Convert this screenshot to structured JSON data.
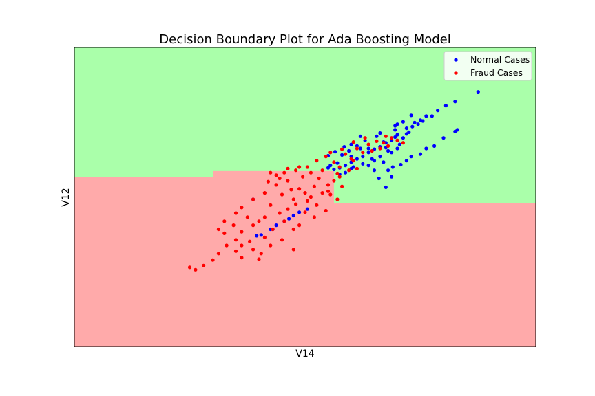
{
  "chart_data": {
    "type": "scatter",
    "title": "Decision Boundary Plot for Ada Boosting Model",
    "xlabel": "V14",
    "ylabel": "V12",
    "xlim": [
      -25,
      15
    ],
    "ylim": [
      -25,
      12
    ],
    "grid": false,
    "ticks_visible": false,
    "legend_position": "top-right",
    "background_regions": [
      {
        "label": "Normal region",
        "color": "#aaffaa"
      },
      {
        "label": "Fraud region",
        "color": "#ffaaaa"
      }
    ],
    "decision_boundary": [
      {
        "x": -25,
        "y": -4.0
      },
      {
        "x": -13,
        "y": -4.0
      },
      {
        "x": -13,
        "y": -3.3
      },
      {
        "x": -2.5,
        "y": -3.3
      },
      {
        "x": -2.5,
        "y": -7.3
      },
      {
        "x": 15,
        "y": -7.3
      }
    ],
    "series": [
      {
        "name": "Normal Cases",
        "color": "#0000ff",
        "points": [
          [
            5.0,
            3.0
          ],
          [
            4.5,
            2.7
          ],
          [
            4.8,
            2.5
          ],
          [
            5.5,
            3.5
          ],
          [
            3.8,
            2.0
          ],
          [
            4.0,
            1.5
          ],
          [
            3.0,
            1.2
          ],
          [
            3.5,
            0.8
          ],
          [
            2.5,
            0.5
          ],
          [
            2.0,
            0.2
          ],
          [
            1.5,
            -0.3
          ],
          [
            1.0,
            -0.6
          ],
          [
            0.5,
            -1.0
          ],
          [
            0.0,
            -1.5
          ],
          [
            -0.5,
            -1.8
          ],
          [
            -1.0,
            -2.2
          ],
          [
            -1.5,
            -2.6
          ],
          [
            -2.0,
            -2.9
          ],
          [
            -2.5,
            -3.1
          ],
          [
            -1.0,
            -1.5
          ],
          [
            0.5,
            -0.5
          ],
          [
            1.8,
            0.3
          ],
          [
            2.8,
            0.9
          ],
          [
            3.8,
            1.3
          ],
          [
            2.2,
            -0.8
          ],
          [
            1.5,
            -1.5
          ],
          [
            2.5,
            -1.0
          ],
          [
            3.0,
            -0.5
          ],
          [
            1.0,
            -2.0
          ],
          [
            0.0,
            -2.4
          ],
          [
            -1.5,
            -3.5
          ],
          [
            -2.0,
            -3.7
          ],
          [
            -0.8,
            -2.8
          ],
          [
            0.8,
            -1.8
          ],
          [
            3.5,
            2.8
          ],
          [
            2.8,
            2.3
          ],
          [
            1.5,
            1.4
          ],
          [
            0.2,
            0.5
          ],
          [
            -0.5,
            -0.2
          ],
          [
            -1.2,
            -0.8
          ],
          [
            -1.8,
            -1.3
          ],
          [
            4.3,
            2.2
          ],
          [
            5.2,
            2.9
          ],
          [
            2.8,
            1.8
          ],
          [
            1.2,
            1.0
          ],
          [
            -0.2,
            -0.5
          ],
          [
            3.2,
            0.0
          ],
          [
            2.0,
            -0.4
          ],
          [
            -2.2,
            -2.3
          ],
          [
            -2.8,
            -2.6
          ],
          [
            -3.0,
            -2.9
          ],
          [
            -1.0,
            -3.0
          ],
          [
            0.5,
            -2.6
          ],
          [
            1.8,
            -2.2
          ],
          [
            2.6,
            -2.8
          ],
          [
            4.2,
            -1.5
          ],
          [
            5.5,
            -0.5
          ],
          [
            7.0,
            0.8
          ],
          [
            8.0,
            1.6
          ],
          [
            8.2,
            1.8
          ],
          [
            5.0,
            -1.2
          ],
          [
            6.2,
            -0.2
          ],
          [
            3.3,
            -2.5
          ],
          [
            2.2,
            -3.2
          ],
          [
            1.4,
            -4.2
          ],
          [
            2.0,
            -5.3
          ],
          [
            -9.5,
            -6.8
          ],
          [
            -8.0,
            -10.5
          ],
          [
            -8.8,
            -11.2
          ],
          [
            -7.5,
            -10.0
          ],
          [
            -6.8,
            -9.5
          ],
          [
            -6.0,
            -8.8
          ],
          [
            -5.5,
            -8.4
          ],
          [
            -4.8,
            -8.0
          ],
          [
            -9.2,
            -11.3
          ],
          [
            -6.4,
            -9.2
          ],
          [
            -7.8,
            -10.5
          ],
          [
            10.0,
            6.5
          ],
          [
            6.5,
            4.2
          ],
          [
            7.2,
            4.8
          ],
          [
            8.0,
            5.3
          ],
          [
            6.0,
            3.5
          ],
          [
            4.2,
            3.6
          ],
          [
            3.0,
            2.5
          ],
          [
            -0.2,
            1.0
          ],
          [
            -1.0,
            0.0
          ],
          [
            -1.6,
            -0.3
          ],
          [
            -2.4,
            -0.9
          ],
          [
            -3.0,
            -1.4
          ],
          [
            1.0,
            -3.2
          ],
          [
            3.8,
            -2.0
          ],
          [
            2.5,
            -4.0
          ]
        ]
      },
      {
        "name": "Fraud Cases",
        "color": "#ff0000",
        "points": [
          [
            -8.0,
            -3.5
          ],
          [
            -7.5,
            -5.0
          ],
          [
            -6.5,
            -4.5
          ],
          [
            -5.5,
            -5.5
          ],
          [
            -6.0,
            -6.8
          ],
          [
            -5.0,
            -6.0
          ],
          [
            -4.5,
            -6.5
          ],
          [
            -4.0,
            -7.5
          ],
          [
            -3.5,
            -6.0
          ],
          [
            -3.0,
            -5.0
          ],
          [
            -2.5,
            -4.5
          ],
          [
            -4.8,
            -7.0
          ],
          [
            -6.2,
            -5.6
          ],
          [
            -5.8,
            -7.4
          ],
          [
            -7.0,
            -6.2
          ],
          [
            -6.5,
            -8.0
          ],
          [
            -8.0,
            -7.5
          ],
          [
            -7.2,
            -8.5
          ],
          [
            -8.5,
            -9.0
          ],
          [
            -9.5,
            -10.0
          ],
          [
            -10.5,
            -10.8
          ],
          [
            -11.0,
            -11.8
          ],
          [
            -11.8,
            -12.5
          ],
          [
            -12.5,
            -13.5
          ],
          [
            -13.0,
            -14.3
          ],
          [
            -13.8,
            -15.0
          ],
          [
            -14.5,
            -15.5
          ],
          [
            -15.0,
            -15.2
          ],
          [
            -11.0,
            -13.2
          ],
          [
            -10.5,
            -14.0
          ],
          [
            -9.5,
            -13.0
          ],
          [
            -8.8,
            -13.5
          ],
          [
            -8.0,
            -12.5
          ],
          [
            -7.0,
            -11.8
          ],
          [
            -6.0,
            -10.5
          ],
          [
            -5.5,
            -10.0
          ],
          [
            -9.0,
            -9.5
          ],
          [
            -10.0,
            -9.0
          ],
          [
            -11.2,
            -10.0
          ],
          [
            -12.0,
            -11.0
          ],
          [
            -12.5,
            -10.5
          ],
          [
            -11.0,
            -8.5
          ],
          [
            -10.5,
            -7.8
          ],
          [
            -9.5,
            -6.8
          ],
          [
            -8.5,
            -6.0
          ],
          [
            -8.2,
            -4.6
          ],
          [
            -7.5,
            -3.8
          ],
          [
            -6.5,
            -3.0
          ],
          [
            -5.5,
            -2.8
          ],
          [
            -4.5,
            -3.5
          ],
          [
            -3.5,
            -3.2
          ],
          [
            -2.0,
            -2.8
          ],
          [
            -1.5,
            -1.2
          ],
          [
            -0.5,
            -0.5
          ],
          [
            0.5,
            0.0
          ],
          [
            1.2,
            0.4
          ],
          [
            1.8,
            0.2
          ],
          [
            2.5,
            0.8
          ],
          [
            3.0,
            0.5
          ],
          [
            3.5,
            0.2
          ],
          [
            0.0,
            -1.0
          ],
          [
            -1.0,
            -1.8
          ],
          [
            -2.5,
            -2.2
          ],
          [
            -3.2,
            -1.5
          ],
          [
            -4.0,
            -2.0
          ],
          [
            -4.8,
            -2.8
          ],
          [
            -5.2,
            -4.0
          ],
          [
            -3.8,
            -4.2
          ],
          [
            -2.2,
            -3.6
          ],
          [
            -1.2,
            -3.2
          ],
          [
            -0.5,
            -3.0
          ],
          [
            -2.8,
            -6.2
          ],
          [
            -3.2,
            -8.2
          ],
          [
            -4.2,
            -9.0
          ],
          [
            -5.0,
            -8.4
          ],
          [
            -6.8,
            -9.5
          ],
          [
            -7.8,
            -10.5
          ],
          [
            -8.5,
            -11.5
          ],
          [
            -9.8,
            -12.0
          ],
          [
            -10.5,
            -12.5
          ],
          [
            -12.0,
            -9.5
          ],
          [
            -7.2,
            -4.2
          ],
          [
            -6.8,
            -3.5
          ],
          [
            -5.8,
            -3.2
          ],
          [
            -4.2,
            -5.2
          ],
          [
            -3.0,
            -5.8
          ],
          [
            -2.2,
            -6.8
          ],
          [
            -1.8,
            -5.2
          ],
          [
            -2.0,
            -4.0
          ],
          [
            -0.8,
            -2.0
          ],
          [
            0.8,
            -0.8
          ],
          [
            1.5,
            -0.5
          ],
          [
            2.2,
            -0.2
          ],
          [
            2.0,
            1.0
          ],
          [
            0.2,
            0.8
          ],
          [
            -0.8,
            0.3
          ],
          [
            -1.8,
            -0.6
          ],
          [
            -2.8,
            -1.0
          ],
          [
            -6.0,
            -13.0
          ],
          [
            -9.0,
            -14.2
          ]
        ]
      }
    ]
  }
}
